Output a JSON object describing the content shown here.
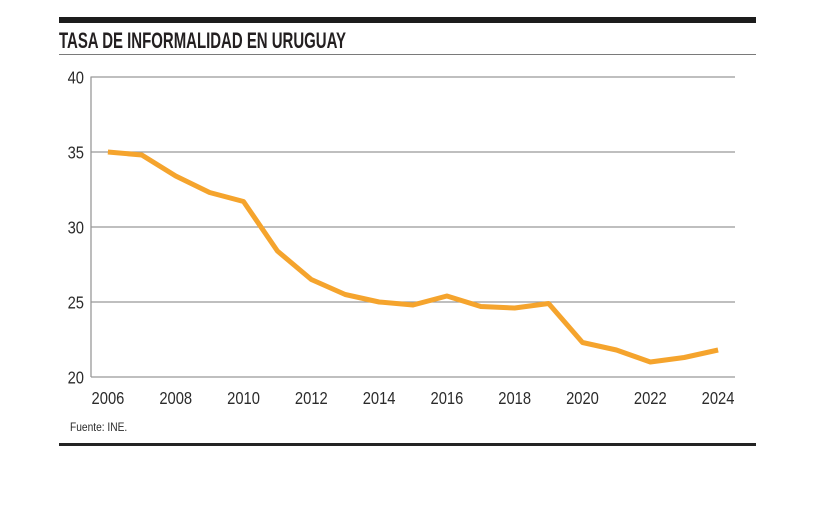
{
  "header": {
    "title": "TASA DE INFORMALIDAD EN URUGUAY"
  },
  "footer": {
    "source": "Fuente: INE."
  },
  "colors": {
    "line": "#F5A42D",
    "grid": "#999999",
    "axis_text": "#2b2b2b",
    "accent_bar": "#1c1c1c"
  },
  "chart_data": {
    "type": "line",
    "title": "TASA DE INFORMALIDAD EN URUGUAY",
    "source": "Fuente: INE.",
    "x": [
      2006,
      2007,
      2008,
      2009,
      2010,
      2011,
      2012,
      2013,
      2014,
      2015,
      2016,
      2017,
      2018,
      2019,
      2020,
      2021,
      2022,
      2023,
      2024
    ],
    "values": [
      35.0,
      34.8,
      33.4,
      32.3,
      31.7,
      28.4,
      26.5,
      25.5,
      25.0,
      24.8,
      25.4,
      24.7,
      24.6,
      24.9,
      22.3,
      21.8,
      21.0,
      21.3,
      21.8
    ],
    "xticks": [
      2006,
      2008,
      2010,
      2012,
      2014,
      2016,
      2018,
      2020,
      2022,
      2024
    ],
    "yticks": [
      40,
      35,
      30,
      25,
      20
    ],
    "ylim": [
      20,
      40
    ],
    "xlabel": "",
    "ylabel": "",
    "grid": "horizontal",
    "legend": "none"
  }
}
